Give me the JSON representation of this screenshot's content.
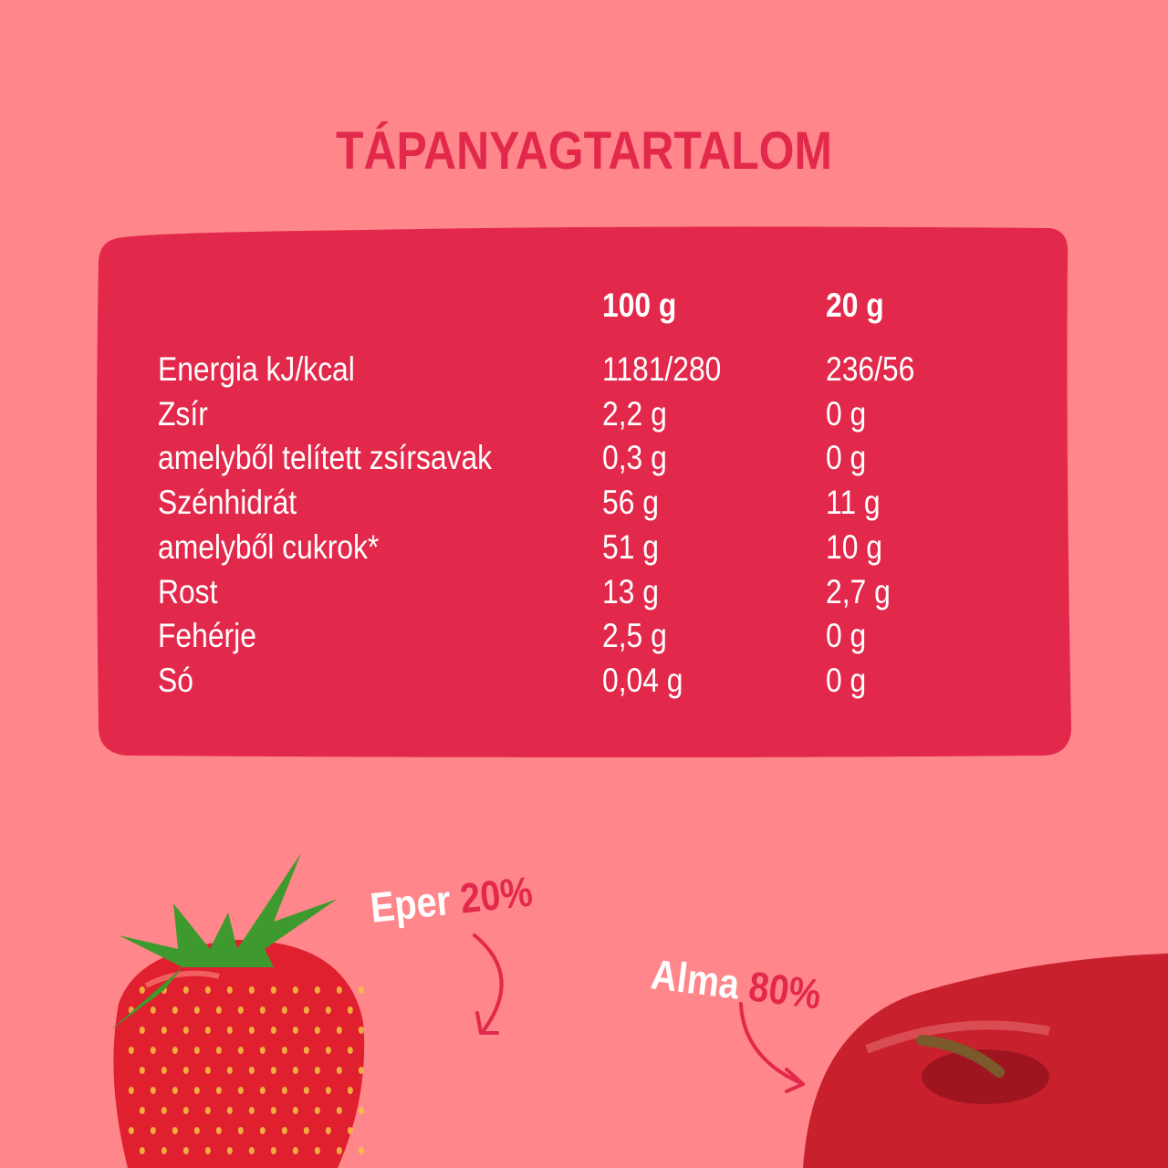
{
  "title": "TÁPANYAGTARTALOM",
  "table": {
    "headers": [
      "100 g",
      "20 g"
    ],
    "rows": [
      {
        "label": "Energia kJ/kcal",
        "v100": "1181/280",
        "v20": "236/56"
      },
      {
        "label": "Zsír",
        "v100": "2,2 g",
        "v20": "0 g"
      },
      {
        "label": "amelyből telített zsírsavak",
        "v100": "0,3 g",
        "v20": "0 g"
      },
      {
        "label": "Szénhidrát",
        "v100": "56 g",
        "v20": "11 g"
      },
      {
        "label": "amelyből cukrok*",
        "v100": "51 g",
        "v20": "10 g"
      },
      {
        "label": "Rost",
        "v100": "13 g",
        "v20": "2,7 g"
      },
      {
        "label": "Fehérje",
        "v100": "2,5 g",
        "v20": "0 g"
      },
      {
        "label": "Só",
        "v100": "0,04 g",
        "v20": "0 g"
      }
    ]
  },
  "ingredients": [
    {
      "name": "Eper",
      "percent": "20%",
      "image": "strawberry"
    },
    {
      "name": "Alma",
      "percent": "80%",
      "image": "apple"
    }
  ],
  "colors": {
    "background": "#FF868A",
    "accent": "#E3294B",
    "text": "#FFFFFF"
  }
}
